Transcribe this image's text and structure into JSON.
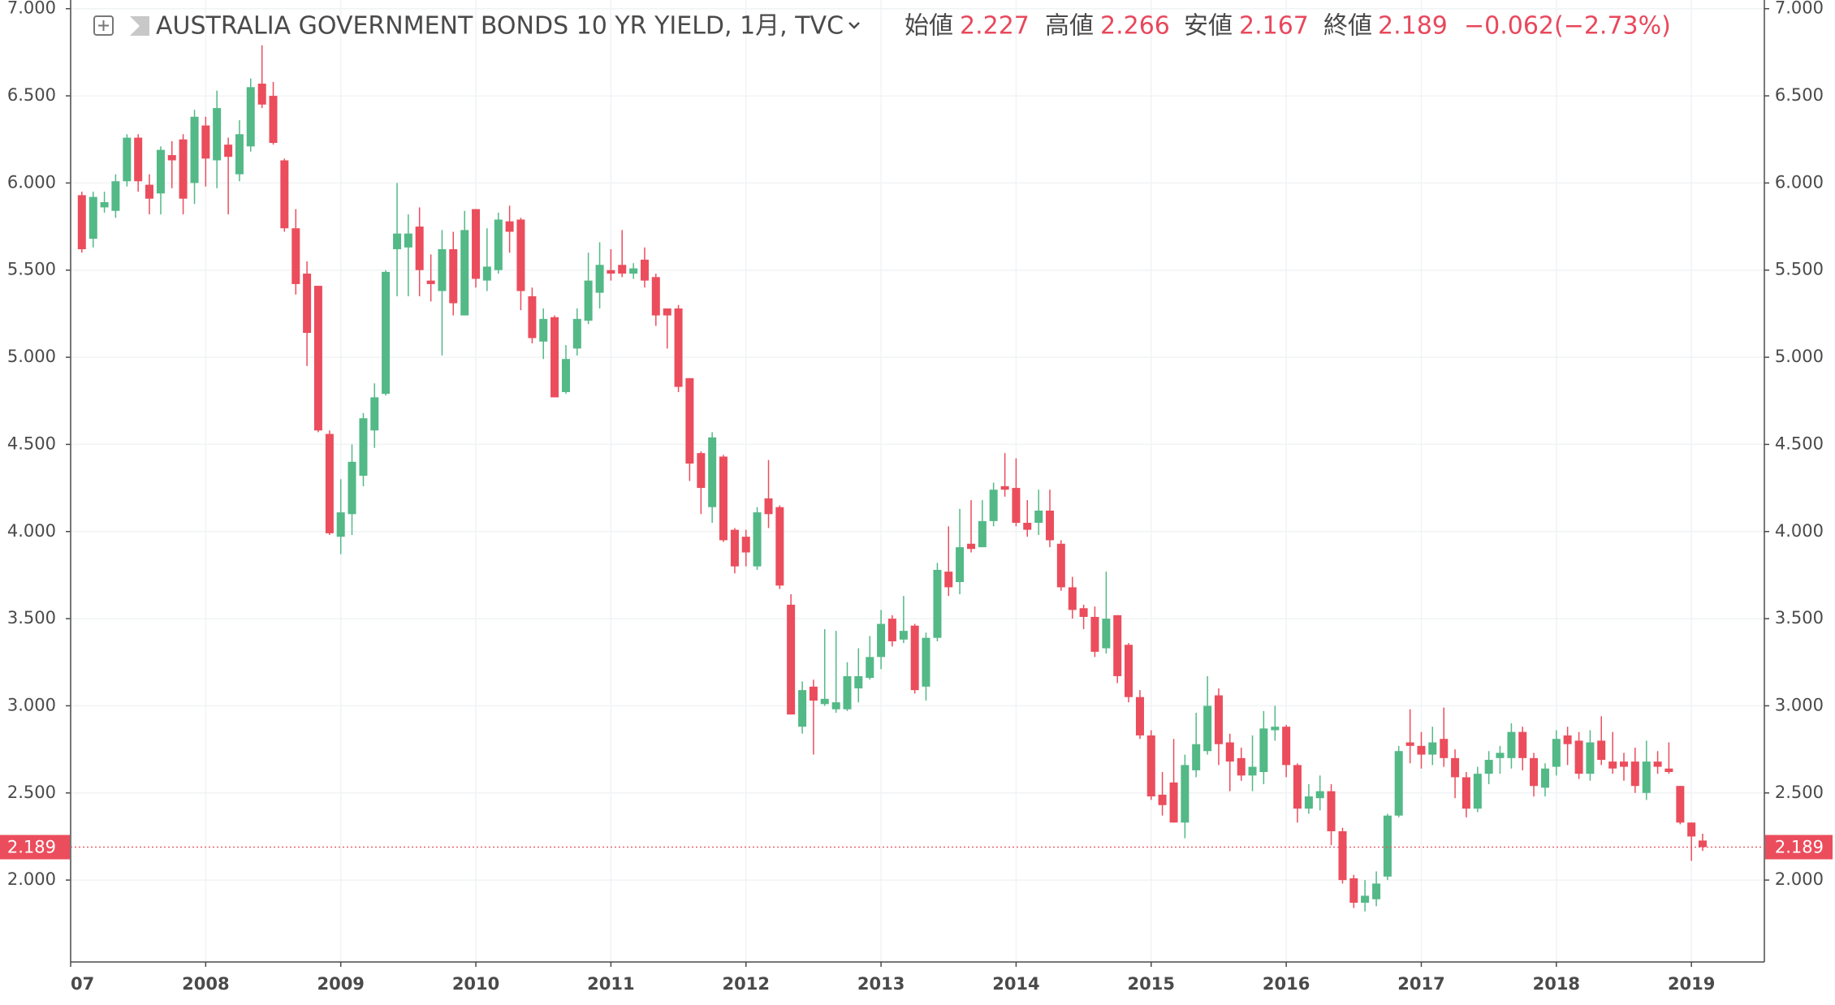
{
  "chart_data": {
    "type": "candlestick",
    "title": "AUSTRALIA GOVERNMENT BONDS 10 YR YIELD, 1月, TVC",
    "header": {
      "open_label": "始値",
      "open": 2.227,
      "high_label": "高値",
      "high": 2.266,
      "low_label": "安値",
      "low": 2.167,
      "close_label": "終値",
      "close": 2.189,
      "change": {
        "value": -0.062,
        "label": "−0.062"
      },
      "change_pct": {
        "value": -2.73,
        "label": "(−2.73%)"
      }
    },
    "last_price": 2.189,
    "up_color": "#53b987",
    "down_color": "#eb4d5c",
    "grid": true,
    "xlim": [
      2007,
      2019.54
    ],
    "ylim": [
      1.53,
      7.05
    ],
    "xticks": [
      2007,
      2008,
      2009,
      2010,
      2011,
      2012,
      2013,
      2014,
      2015,
      2016,
      2017,
      2018,
      2019
    ],
    "yticks": [
      {
        "value": 2,
        "label": "2.000"
      },
      {
        "value": 2.5,
        "label": "2.500"
      },
      {
        "value": 3,
        "label": "3.000"
      },
      {
        "value": 3.5,
        "label": "3.500"
      },
      {
        "value": 4,
        "label": "4.000"
      },
      {
        "value": 4.5,
        "label": "4.500"
      },
      {
        "value": 5,
        "label": "5.000"
      },
      {
        "value": 5.5,
        "label": "5.500"
      },
      {
        "value": 6,
        "label": "6.000"
      },
      {
        "value": 6.5,
        "label": "6.500"
      },
      {
        "value": 7,
        "label": "7.000"
      }
    ],
    "x": [
      2007.083,
      2007.167,
      2007.25,
      2007.333,
      2007.417,
      2007.5,
      2007.583,
      2007.667,
      2007.75,
      2007.833,
      2007.917,
      2008,
      2008.083,
      2008.167,
      2008.25,
      2008.333,
      2008.417,
      2008.5,
      2008.583,
      2008.667,
      2008.75,
      2008.833,
      2008.917,
      2009,
      2009.083,
      2009.167,
      2009.25,
      2009.333,
      2009.417,
      2009.5,
      2009.583,
      2009.667,
      2009.75,
      2009.833,
      2009.917,
      2010,
      2010.083,
      2010.167,
      2010.25,
      2010.333,
      2010.417,
      2010.5,
      2010.583,
      2010.667,
      2010.75,
      2010.833,
      2010.917,
      2011,
      2011.083,
      2011.167,
      2011.25,
      2011.333,
      2011.417,
      2011.5,
      2011.583,
      2011.667,
      2011.75,
      2011.833,
      2011.917,
      2012,
      2012.083,
      2012.167,
      2012.25,
      2012.333,
      2012.417,
      2012.5,
      2012.583,
      2012.667,
      2012.75,
      2012.833,
      2012.917,
      2013,
      2013.083,
      2013.167,
      2013.25,
      2013.333,
      2013.417,
      2013.5,
      2013.583,
      2013.667,
      2013.75,
      2013.833,
      2013.917,
      2014,
      2014.083,
      2014.167,
      2014.25,
      2014.333,
      2014.417,
      2014.5,
      2014.583,
      2014.667,
      2014.75,
      2014.833,
      2014.917,
      2015,
      2015.083,
      2015.167,
      2015.25,
      2015.333,
      2015.417,
      2015.5,
      2015.583,
      2015.667,
      2015.75,
      2015.833,
      2015.917,
      2016,
      2016.083,
      2016.167,
      2016.25,
      2016.333,
      2016.417,
      2016.5,
      2016.583,
      2016.667,
      2016.75,
      2016.833,
      2016.917,
      2017,
      2017.083,
      2017.167,
      2017.25,
      2017.333,
      2017.417,
      2017.5,
      2017.583,
      2017.667,
      2017.75,
      2017.833,
      2017.917,
      2018,
      2018.083,
      2018.167,
      2018.25,
      2018.333,
      2018.417,
      2018.5,
      2018.583,
      2018.667,
      2018.75,
      2018.833,
      2018.917,
      2019,
      2019.083
    ],
    "open": [
      5.93,
      5.68,
      5.86,
      5.84,
      6.01,
      6.26,
      5.99,
      5.94,
      6.16,
      6.25,
      6.0,
      6.33,
      6.13,
      6.22,
      6.05,
      6.21,
      6.57,
      6.5,
      6.13,
      5.74,
      5.48,
      5.41,
      4.56,
      3.97,
      4.1,
      4.32,
      4.58,
      4.79,
      5.62,
      5.63,
      5.75,
      5.44,
      5.38,
      5.62,
      5.24,
      5.85,
      5.44,
      5.5,
      5.78,
      5.79,
      5.35,
      5.09,
      5.23,
      4.8,
      5.05,
      5.21,
      5.37,
      5.5,
      5.53,
      5.48,
      5.56,
      5.46,
      5.28,
      5.28,
      4.88,
      4.45,
      4.14,
      4.43,
      4.01,
      3.97,
      3.8,
      4.19,
      4.14,
      3.58,
      2.88,
      3.11,
      3.01,
      2.98,
      2.98,
      3.1,
      3.16,
      3.28,
      3.5,
      3.38,
      3.46,
      3.11,
      3.39,
      3.77,
      3.71,
      3.93,
      3.91,
      4.06,
      4.26,
      4.25,
      4.05,
      4.05,
      4.12,
      3.93,
      3.68,
      3.56,
      3.51,
      3.33,
      3.52,
      3.35,
      3.05,
      2.83,
      2.49,
      2.56,
      2.33,
      2.63,
      2.74,
      3.06,
      2.79,
      2.7,
      2.6,
      2.62,
      2.86,
      2.88,
      2.66,
      2.41,
      2.47,
      2.51,
      2.28,
      2.01,
      1.87,
      1.89,
      2.02,
      2.37,
      2.79,
      2.77,
      2.72,
      2.81,
      2.7,
      2.59,
      2.41,
      2.61,
      2.7,
      2.7,
      2.85,
      2.7,
      2.53,
      2.65,
      2.83,
      2.8,
      2.61,
      2.8,
      2.68,
      2.68,
      2.68,
      2.5,
      2.68,
      2.64,
      2.54,
      2.33,
      2.227
    ],
    "high": [
      5.95,
      5.95,
      5.95,
      6.05,
      6.28,
      6.28,
      6.05,
      6.21,
      6.24,
      6.28,
      6.42,
      6.38,
      6.53,
      6.26,
      6.36,
      6.6,
      6.79,
      6.58,
      6.14,
      5.85,
      5.55,
      5.41,
      4.58,
      4.3,
      4.5,
      4.68,
      4.85,
      5.5,
      6.0,
      5.82,
      5.86,
      5.59,
      5.73,
      5.72,
      5.84,
      5.85,
      5.74,
      5.83,
      5.87,
      5.8,
      5.4,
      5.28,
      5.24,
      5.07,
      5.28,
      5.6,
      5.66,
      5.62,
      5.73,
      5.54,
      5.63,
      5.48,
      5.28,
      5.3,
      4.88,
      4.46,
      4.57,
      4.44,
      4.02,
      4.01,
      4.14,
      4.41,
      4.15,
      3.64,
      3.14,
      3.15,
      3.44,
      3.43,
      3.25,
      3.33,
      3.4,
      3.55,
      3.52,
      3.63,
      3.47,
      3.42,
      3.82,
      4.03,
      4.13,
      4.18,
      4.18,
      4.28,
      4.45,
      4.42,
      4.18,
      4.24,
      4.24,
      3.95,
      3.74,
      3.58,
      3.57,
      3.77,
      3.52,
      3.36,
      3.09,
      2.86,
      2.62,
      2.81,
      2.72,
      2.96,
      3.17,
      3.1,
      2.84,
      2.76,
      2.83,
      2.97,
      3.0,
      2.89,
      2.67,
      2.55,
      2.6,
      2.55,
      2.3,
      2.03,
      2.0,
      2.05,
      2.38,
      2.77,
      2.98,
      2.85,
      2.88,
      2.99,
      2.75,
      2.62,
      2.65,
      2.74,
      2.77,
      2.9,
      2.88,
      2.73,
      2.67,
      2.86,
      2.88,
      2.85,
      2.86,
      2.94,
      2.85,
      2.73,
      2.76,
      2.8,
      2.74,
      2.79,
      2.54,
      2.33,
      2.266
    ],
    "low": [
      5.6,
      5.63,
      5.83,
      5.8,
      5.98,
      5.95,
      5.82,
      5.82,
      5.97,
      5.82,
      5.88,
      5.98,
      5.97,
      5.82,
      6.01,
      6.18,
      6.43,
      6.22,
      5.72,
      5.36,
      4.95,
      4.57,
      3.98,
      3.87,
      3.98,
      4.26,
      4.48,
      4.78,
      5.35,
      5.35,
      5.35,
      5.32,
      5.01,
      5.24,
      5.24,
      5.4,
      5.38,
      5.48,
      5.6,
      5.27,
      5.08,
      4.99,
      4.77,
      4.79,
      5.01,
      5.19,
      5.28,
      5.44,
      5.46,
      5.45,
      5.4,
      5.18,
      5.05,
      4.8,
      4.29,
      4.1,
      4.05,
      3.94,
      3.76,
      3.8,
      3.78,
      4.02,
      3.67,
      2.95,
      2.84,
      2.72,
      3.0,
      2.96,
      2.97,
      3.02,
      3.15,
      3.21,
      3.34,
      3.36,
      3.07,
      3.03,
      3.37,
      3.63,
      3.64,
      3.88,
      3.91,
      4.03,
      4.2,
      4.03,
      3.97,
      3.98,
      3.91,
      3.66,
      3.5,
      3.44,
      3.28,
      3.3,
      3.13,
      3.02,
      2.81,
      2.46,
      2.37,
      2.33,
      2.24,
      2.59,
      2.72,
      2.66,
      2.51,
      2.57,
      2.51,
      2.55,
      2.8,
      2.59,
      2.33,
      2.38,
      2.4,
      2.2,
      1.98,
      1.84,
      1.82,
      1.85,
      2.0,
      2.36,
      2.67,
      2.64,
      2.66,
      2.65,
      2.47,
      2.36,
      2.39,
      2.55,
      2.61,
      2.64,
      2.63,
      2.48,
      2.48,
      2.6,
      2.66,
      2.58,
      2.57,
      2.66,
      2.61,
      2.57,
      2.5,
      2.46,
      2.61,
      2.61,
      2.32,
      2.11,
      2.167
    ],
    "close": [
      5.62,
      5.92,
      5.89,
      6.01,
      6.26,
      6.01,
      5.91,
      6.19,
      6.13,
      5.91,
      6.38,
      6.14,
      6.43,
      6.15,
      6.28,
      6.55,
      6.45,
      6.23,
      5.74,
      5.42,
      5.14,
      4.58,
      3.99,
      4.11,
      4.4,
      4.65,
      4.77,
      5.49,
      5.71,
      5.71,
      5.5,
      5.42,
      5.62,
      5.31,
      5.73,
      5.45,
      5.52,
      5.79,
      5.72,
      5.38,
      5.11,
      5.22,
      4.77,
      4.99,
      5.22,
      5.44,
      5.53,
      5.48,
      5.48,
      5.51,
      5.44,
      5.24,
      5.24,
      4.83,
      4.39,
      4.25,
      4.54,
      3.95,
      3.8,
      3.88,
      4.11,
      4.1,
      3.69,
      2.95,
      3.09,
      3.03,
      3.04,
      3.02,
      3.17,
      3.17,
      3.28,
      3.47,
      3.37,
      3.43,
      3.09,
      3.39,
      3.78,
      3.68,
      3.91,
      3.9,
      4.06,
      4.24,
      4.24,
      4.05,
      4.01,
      4.12,
      3.95,
      3.68,
      3.55,
      3.51,
      3.31,
      3.5,
      3.17,
      3.05,
      2.83,
      2.48,
      2.43,
      2.33,
      2.66,
      2.78,
      3.0,
      2.78,
      2.68,
      2.6,
      2.65,
      2.87,
      2.88,
      2.66,
      2.41,
      2.48,
      2.51,
      2.28,
      2.0,
      1.87,
      1.91,
      1.98,
      2.37,
      2.74,
      2.77,
      2.72,
      2.79,
      2.7,
      2.59,
      2.41,
      2.61,
      2.69,
      2.73,
      2.85,
      2.7,
      2.54,
      2.64,
      2.81,
      2.78,
      2.61,
      2.79,
      2.69,
      2.64,
      2.65,
      2.54,
      2.68,
      2.65,
      2.62,
      2.33,
      2.25,
      2.189
    ]
  }
}
